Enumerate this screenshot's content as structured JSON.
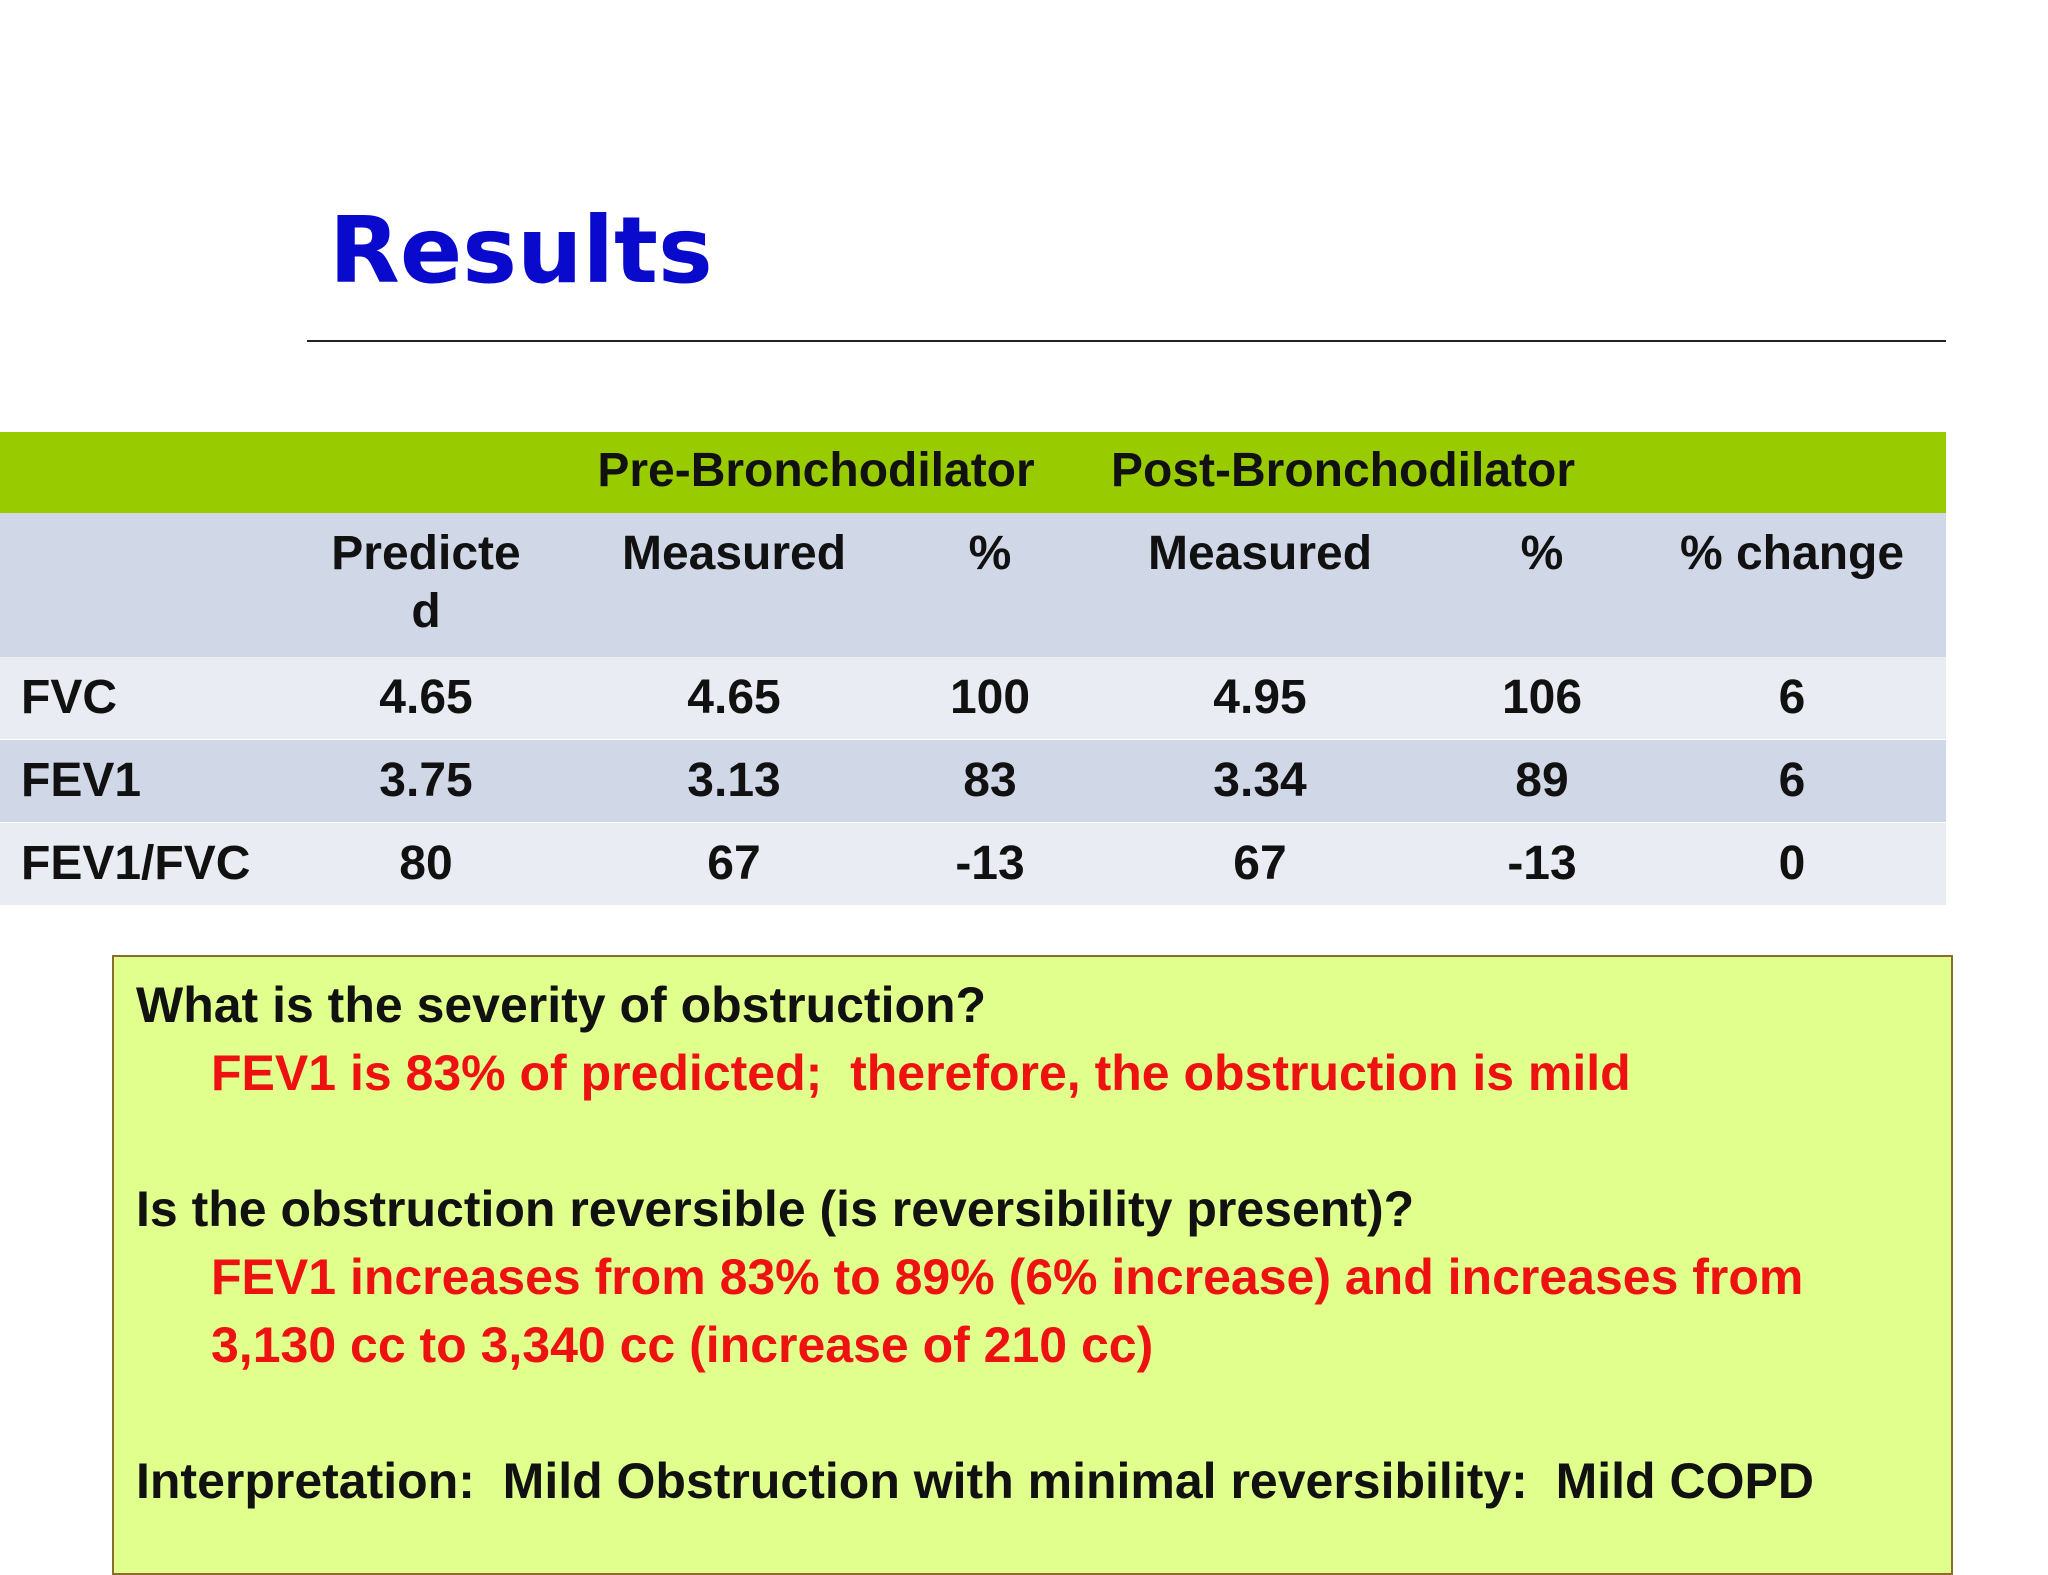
{
  "title": "Results",
  "table": {
    "groups": [
      "Pre-Bronchodilator",
      "Post-Bronchodilator"
    ],
    "columns": [
      "Predicted",
      "Measured",
      "%",
      "Measured",
      "%",
      "% change"
    ],
    "rows": [
      [
        "FVC",
        4.65,
        4.65,
        100,
        4.95,
        106,
        6
      ],
      [
        "FEV1",
        3.75,
        3.13,
        83,
        3.34,
        89,
        6
      ],
      [
        "FEV1/FVC",
        80,
        67,
        -13,
        67,
        -13,
        0
      ]
    ]
  },
  "box": {
    "items": [
      {
        "question": "What is the severity of obstruction?",
        "answer": "FEV1 is 83% of predicted;  therefore, the obstruction is mild"
      },
      {
        "question": "Is the obstruction reversible (is reversibility present)?",
        "answer": "FEV1 increases from 83% to 89% (6% increase) and increases from 3,130 cc to 3,340 cc (increase of 210 cc)"
      }
    ],
    "interpretation": "Interpretation:  Mild Obstruction with minimal reversibility:  Mild COPD"
  }
}
